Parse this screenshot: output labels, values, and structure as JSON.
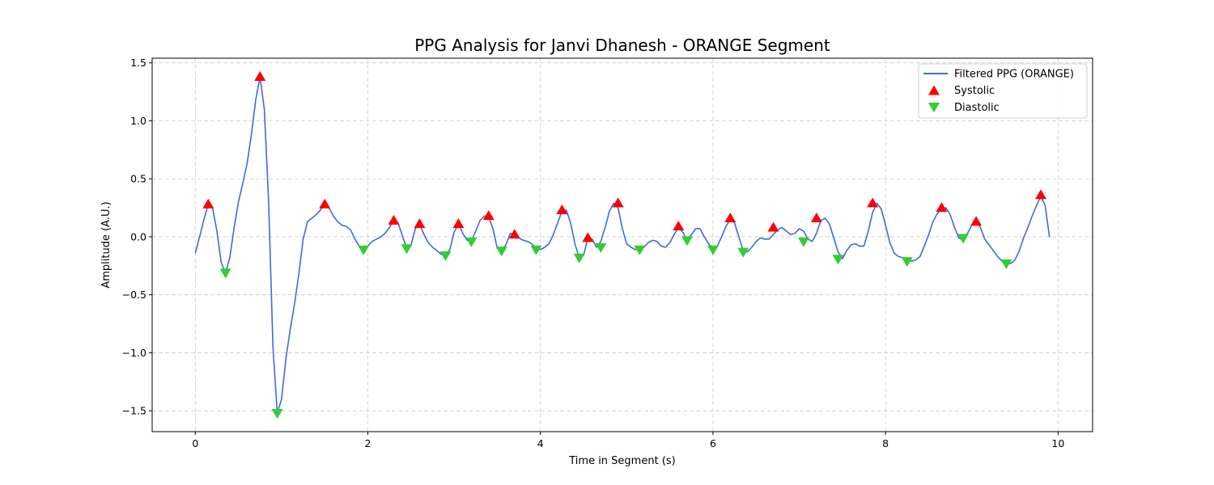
{
  "chart_data": {
    "type": "line",
    "title": "PPG Analysis for Janvi Dhanesh - ORANGE Segment",
    "xlabel": "Time in Segment (s)",
    "ylabel": "Amplitude (A.U.)",
    "xlim": [
      -0.5,
      10.4
    ],
    "ylim": [
      -1.68,
      1.54
    ],
    "xticks": [
      0,
      2,
      4,
      6,
      8,
      10
    ],
    "xtick_labels": [
      "0",
      "2",
      "4",
      "6",
      "8",
      "10"
    ],
    "yticks": [
      -1.5,
      -1.0,
      -0.5,
      0.0,
      0.5,
      1.0,
      1.5
    ],
    "ytick_labels": [
      "−1.5",
      "−1.0",
      "−0.5",
      "0.0",
      "0.5",
      "1.0",
      "1.5"
    ],
    "grid": true,
    "legend_position": "top-right",
    "colors": {
      "line": "#4169E1",
      "systolic": "#FF0000",
      "diastolic": "#32CD32",
      "grid": "#cccccc"
    },
    "series": [
      {
        "name": "Filtered PPG (ORANGE)",
        "kind": "line",
        "x": [
          0.0,
          0.05,
          0.1,
          0.15,
          0.2,
          0.25,
          0.3,
          0.35,
          0.4,
          0.45,
          0.5,
          0.55,
          0.6,
          0.65,
          0.7,
          0.75,
          0.8,
          0.85,
          0.9,
          0.95,
          1.0,
          1.05,
          1.1,
          1.15,
          1.2,
          1.25,
          1.3,
          1.35,
          1.4,
          1.45,
          1.5,
          1.55,
          1.6,
          1.65,
          1.7,
          1.75,
          1.8,
          1.85,
          1.9,
          1.95,
          2.0,
          2.05,
          2.1,
          2.15,
          2.2,
          2.25,
          2.3,
          2.35,
          2.4,
          2.45,
          2.5,
          2.55,
          2.6,
          2.65,
          2.7,
          2.75,
          2.8,
          2.85,
          2.9,
          2.95,
          3.0,
          3.05,
          3.1,
          3.15,
          3.2,
          3.25,
          3.3,
          3.35,
          3.4,
          3.45,
          3.5,
          3.55,
          3.6,
          3.65,
          3.7,
          3.75,
          3.8,
          3.85,
          3.9,
          3.95,
          4.0,
          4.05,
          4.1,
          4.15,
          4.2,
          4.25,
          4.3,
          4.35,
          4.4,
          4.45,
          4.5,
          4.55,
          4.6,
          4.65,
          4.7,
          4.75,
          4.8,
          4.85,
          4.9,
          4.95,
          5.0,
          5.05,
          5.1,
          5.15,
          5.2,
          5.25,
          5.3,
          5.35,
          5.4,
          5.45,
          5.5,
          5.55,
          5.6,
          5.65,
          5.7,
          5.75,
          5.8,
          5.85,
          5.9,
          5.95,
          6.0,
          6.05,
          6.1,
          6.15,
          6.2,
          6.25,
          6.3,
          6.35,
          6.4,
          6.45,
          6.5,
          6.55,
          6.6,
          6.65,
          6.7,
          6.75,
          6.8,
          6.85,
          6.9,
          6.95,
          7.0,
          7.05,
          7.1,
          7.15,
          7.2,
          7.25,
          7.3,
          7.35,
          7.4,
          7.45,
          7.5,
          7.55,
          7.6,
          7.65,
          7.7,
          7.75,
          7.8,
          7.85,
          7.9,
          7.95,
          8.0,
          8.05,
          8.1,
          8.15,
          8.2,
          8.25,
          8.3,
          8.35,
          8.4,
          8.45,
          8.5,
          8.55,
          8.6,
          8.65,
          8.7,
          8.75,
          8.8,
          8.85,
          8.9,
          8.95,
          9.0,
          9.05,
          9.1,
          9.15,
          9.2,
          9.25,
          9.3,
          9.35,
          9.4,
          9.45,
          9.5,
          9.55,
          9.6,
          9.65,
          9.7,
          9.75,
          9.8,
          9.85,
          9.9
        ],
        "y": [
          -0.14,
          0.0,
          0.15,
          0.28,
          0.25,
          0.05,
          -0.22,
          -0.31,
          -0.18,
          0.08,
          0.3,
          0.46,
          0.63,
          0.88,
          1.18,
          1.38,
          1.1,
          0.3,
          -0.95,
          -1.52,
          -1.4,
          -1.05,
          -0.8,
          -0.58,
          -0.32,
          -0.02,
          0.13,
          0.16,
          0.19,
          0.23,
          0.28,
          0.25,
          0.18,
          0.13,
          0.1,
          0.09,
          0.06,
          -0.02,
          -0.08,
          -0.11,
          -0.08,
          -0.04,
          -0.02,
          0.0,
          0.03,
          0.08,
          0.14,
          0.12,
          0.01,
          -0.1,
          -0.07,
          0.07,
          0.11,
          0.02,
          -0.05,
          -0.09,
          -0.12,
          -0.15,
          -0.16,
          -0.11,
          0.04,
          0.11,
          0.03,
          -0.03,
          -0.04,
          0.05,
          0.14,
          0.18,
          0.17,
          0.07,
          -0.1,
          -0.12,
          -0.07,
          0.03,
          0.02,
          -0.01,
          -0.03,
          -0.04,
          -0.06,
          -0.1,
          -0.11,
          -0.09,
          -0.06,
          0.02,
          0.12,
          0.22,
          0.23,
          0.12,
          -0.06,
          -0.18,
          -0.16,
          -0.01,
          -0.02,
          -0.09,
          -0.04,
          0.08,
          0.22,
          0.29,
          0.25,
          0.07,
          -0.06,
          -0.09,
          -0.11,
          -0.11,
          -0.09,
          -0.05,
          -0.03,
          -0.04,
          -0.08,
          -0.09,
          -0.05,
          0.02,
          0.08,
          0.04,
          -0.03,
          0.02,
          0.07,
          0.07,
          0.0,
          -0.06,
          -0.11,
          -0.08,
          0.0,
          0.09,
          0.15,
          0.12,
          0.0,
          -0.12,
          -0.13,
          -0.09,
          -0.04,
          -0.01,
          -0.02,
          -0.02,
          0.02,
          0.06,
          0.08,
          0.05,
          0.02,
          0.03,
          0.07,
          0.05,
          -0.02,
          -0.04,
          0.03,
          0.14,
          0.16,
          0.11,
          -0.01,
          -0.13,
          -0.19,
          -0.12,
          -0.07,
          -0.06,
          -0.08,
          -0.08,
          0.05,
          0.21,
          0.29,
          0.24,
          0.1,
          -0.05,
          -0.14,
          -0.17,
          -0.18,
          -0.2,
          -0.21,
          -0.2,
          -0.17,
          -0.08,
          0.02,
          0.13,
          0.2,
          0.24,
          0.25,
          0.19,
          0.08,
          -0.01,
          -0.03,
          0.03,
          0.1,
          0.13,
          0.08,
          -0.02,
          -0.07,
          -0.12,
          -0.17,
          -0.21,
          -0.23,
          -0.23,
          -0.2,
          -0.12,
          -0.01,
          0.08,
          0.18,
          0.27,
          0.35,
          0.27,
          0.0
        ]
      },
      {
        "name": "Systolic",
        "kind": "marker-up",
        "x": [
          0.15,
          0.75,
          1.5,
          2.3,
          2.6,
          3.05,
          3.4,
          3.7,
          4.25,
          4.55,
          4.9,
          5.6,
          6.2,
          6.7,
          7.2,
          7.85,
          8.65,
          9.05,
          9.8
        ],
        "y": [
          0.28,
          1.38,
          0.28,
          0.14,
          0.11,
          0.11,
          0.18,
          0.02,
          0.23,
          -0.01,
          0.29,
          0.09,
          0.16,
          0.08,
          0.16,
          0.29,
          0.25,
          0.13,
          0.36
        ]
      },
      {
        "name": "Diastolic",
        "kind": "marker-down",
        "x": [
          0.35,
          0.95,
          1.95,
          2.45,
          2.9,
          3.2,
          3.55,
          3.95,
          4.45,
          4.7,
          5.15,
          5.7,
          6.0,
          6.35,
          7.05,
          7.45,
          8.25,
          8.9,
          9.4
        ],
        "y": [
          -0.31,
          -1.52,
          -0.11,
          -0.1,
          -0.16,
          -0.04,
          -0.12,
          -0.11,
          -0.18,
          -0.09,
          -0.11,
          -0.03,
          -0.11,
          -0.13,
          -0.04,
          -0.19,
          -0.21,
          -0.01,
          -0.23
        ]
      }
    ]
  }
}
